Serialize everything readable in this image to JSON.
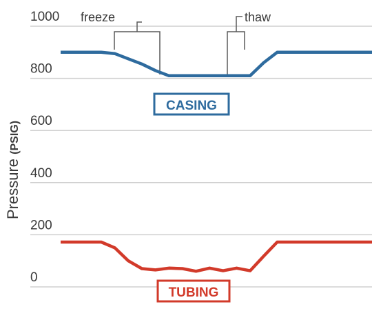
{
  "chart_data": {
    "type": "line",
    "title": "",
    "xlabel": "",
    "ylabel": "Pressure",
    "ylabel_unit": "PSIG",
    "ylim": [
      0,
      1000
    ],
    "yticks": [
      "0",
      "200",
      "400",
      "600",
      "800",
      "1000"
    ],
    "grid": true,
    "annotations": [
      "freeze",
      "thaw"
    ],
    "series": [
      {
        "name": "CASING",
        "color": "#2e6b9e",
        "points": [
          [
            0,
            900
          ],
          [
            1,
            900
          ],
          [
            2,
            900
          ],
          [
            3,
            900
          ],
          [
            4,
            895
          ],
          [
            5,
            875
          ],
          [
            6,
            855
          ],
          [
            7,
            830
          ],
          [
            8,
            810
          ],
          [
            9,
            810
          ],
          [
            10,
            810
          ],
          [
            11,
            810
          ],
          [
            12,
            810
          ],
          [
            13,
            810
          ],
          [
            14,
            810
          ],
          [
            15,
            860
          ],
          [
            16,
            900
          ],
          [
            17,
            900
          ],
          [
            18,
            900
          ],
          [
            19,
            900
          ],
          [
            20,
            900
          ],
          [
            21,
            900
          ],
          [
            22,
            900
          ],
          [
            23,
            900
          ]
        ]
      },
      {
        "name": "TUBING",
        "color": "#d23a2a",
        "points": [
          [
            0,
            172
          ],
          [
            1,
            172
          ],
          [
            2,
            172
          ],
          [
            3,
            172
          ],
          [
            4,
            150
          ],
          [
            5,
            100
          ],
          [
            6,
            70
          ],
          [
            7,
            65
          ],
          [
            8,
            72
          ],
          [
            9,
            70
          ],
          [
            10,
            60
          ],
          [
            11,
            72
          ],
          [
            12,
            62
          ],
          [
            13,
            72
          ],
          [
            14,
            62
          ],
          [
            15,
            118
          ],
          [
            16,
            172
          ],
          [
            17,
            172
          ],
          [
            18,
            172
          ],
          [
            19,
            172
          ],
          [
            20,
            172
          ],
          [
            21,
            172
          ],
          [
            22,
            172
          ],
          [
            23,
            172
          ]
        ]
      }
    ]
  }
}
